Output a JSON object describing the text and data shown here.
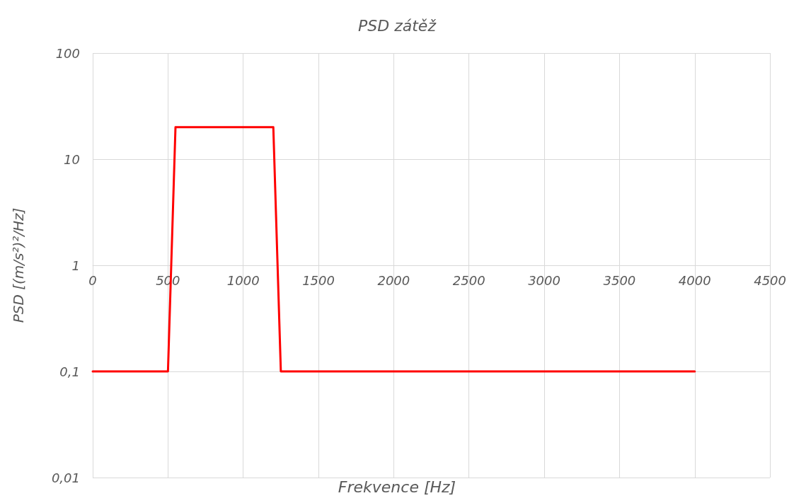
{
  "chart_data": {
    "type": "line",
    "title": "PSD zátěž",
    "xlabel": "Frekvence [Hz]",
    "ylabel": "PSD [(m/s²)²/Hz]",
    "series": [
      {
        "color": "#ff0000",
        "x": [
          0,
          500,
          550,
          1200,
          1250,
          4000
        ],
        "values": [
          0.1,
          0.1,
          20,
          20,
          0.1,
          0.1
        ]
      }
    ],
    "xlim": [
      0,
      4500
    ],
    "xticks": [
      0,
      500,
      1000,
      1500,
      2000,
      2500,
      3000,
      3500,
      4000,
      4500
    ],
    "ylim": [
      0.01,
      100
    ],
    "yticks": [
      {
        "value": 0.01,
        "label": "0,01"
      },
      {
        "value": 0.1,
        "label": "0,1"
      },
      1,
      10,
      100
    ],
    "log": true,
    "grid": true,
    "marker": "none",
    "line_style": "solid"
  }
}
